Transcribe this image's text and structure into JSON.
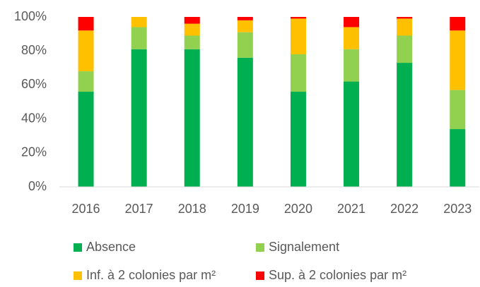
{
  "chart_data": {
    "type": "stacked_bar",
    "categories": [
      "2016",
      "2017",
      "2018",
      "2019",
      "2020",
      "2021",
      "2022",
      "2023"
    ],
    "series": [
      {
        "name": "Absence",
        "color": "#00b050",
        "values": [
          56,
          81,
          81,
          76,
          56,
          62,
          73,
          34
        ]
      },
      {
        "name": "Signalement",
        "color": "#92d050",
        "values": [
          12,
          13,
          8,
          15,
          22,
          19,
          16,
          23
        ]
      },
      {
        "name": "Inf. à 2 colonies par m²",
        "color": "#ffc000",
        "values": [
          24,
          6,
          7,
          7,
          21,
          13,
          10,
          35
        ]
      },
      {
        "name": "Sup. à 2 colonies par m²",
        "color": "#ff0000",
        "values": [
          8,
          0,
          4,
          2,
          1,
          6,
          1,
          8
        ]
      }
    ],
    "ylim": [
      0,
      100
    ],
    "yticks": [
      {
        "value": 0,
        "label": "0%"
      },
      {
        "value": 20,
        "label": "20%"
      },
      {
        "value": 40,
        "label": "40%"
      },
      {
        "value": 60,
        "label": "60%"
      },
      {
        "value": 80,
        "label": "80%"
      },
      {
        "value": 100,
        "label": "100%"
      }
    ],
    "grid": false
  }
}
